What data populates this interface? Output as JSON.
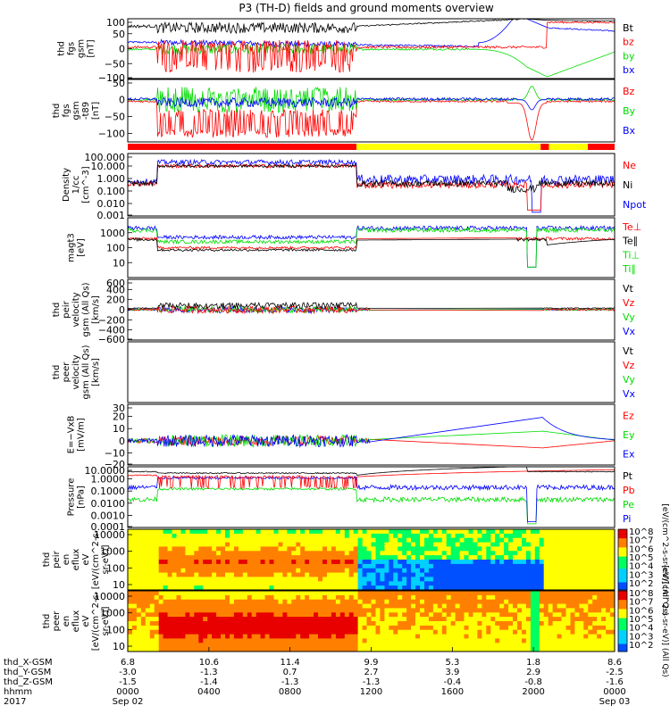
{
  "title": "P3 (TH-D) fields and ground moments overview",
  "colors": {
    "black": "#000000",
    "red": "#ff0000",
    "green": "#00dd00",
    "blue": "#0000ff",
    "yellow": "#ffff00"
  },
  "chart_data": [
    {
      "type": "line",
      "id": "fgs",
      "ylabel": [
        "thd",
        "fgs",
        "gsm",
        "[nT]"
      ],
      "ylim": [
        -100,
        100
      ],
      "ticks": [
        "100",
        "50",
        "0",
        "−50",
        "−100"
      ],
      "tick_values": [
        100,
        50,
        0,
        -50,
        -100
      ],
      "legend": [
        {
          "name": "Bt",
          "color": "#000000"
        },
        {
          "name": "bz",
          "color": "#ff0000"
        },
        {
          "name": "by",
          "color": "#00dd00"
        },
        {
          "name": "bx",
          "color": "#0000ff"
        }
      ]
    },
    {
      "type": "line",
      "id": "fgs_t89",
      "ylabel": [
        "thd",
        "fgs",
        "gsm",
        "-t89",
        "[nT]"
      ],
      "ylim": [
        -125,
        60
      ],
      "ticks": [
        "50",
        "0",
        "−50",
        "−100"
      ],
      "tick_values": [
        50,
        0,
        -50,
        -100
      ],
      "legend": [
        {
          "name": "Bz",
          "color": "#ff0000"
        },
        {
          "name": "By",
          "color": "#00dd00"
        },
        {
          "name": "Bx",
          "color": "#0000ff"
        }
      ]
    },
    {
      "type": "line",
      "id": "density",
      "ylabel": [
        "Density",
        "1/cc",
        "[cm^-3]"
      ],
      "scale": "log",
      "ylim": [
        0.001,
        100
      ],
      "ticks": [
        "100.000",
        "10.000",
        "1.000",
        "0.100",
        "0.010",
        "0.001"
      ],
      "legend": [
        {
          "name": "Ne",
          "color": "#ff0000"
        },
        {
          "name": "Ni",
          "color": "#000000"
        },
        {
          "name": "Npot",
          "color": "#0000ff"
        }
      ]
    },
    {
      "type": "line",
      "id": "temperature",
      "ylabel": [
        "magt3",
        "[eV]"
      ],
      "scale": "log",
      "ylim": [
        1,
        10000
      ],
      "ticks": [
        "1000",
        "100",
        "10"
      ],
      "legend": [
        {
          "name": "Te⊥",
          "color": "#ff0000"
        },
        {
          "name": "Te∥",
          "color": "#000000"
        },
        {
          "name": "Ti⊥",
          "color": "#00dd00"
        },
        {
          "name": "Ti∥",
          "color": "#00dd00"
        }
      ]
    },
    {
      "type": "line",
      "id": "peir_velocity",
      "ylabel": [
        "thd",
        "peir",
        "velocity",
        "gsm (All Qs)",
        "[km/s]"
      ],
      "ylim": [
        -600,
        600
      ],
      "ticks": [
        "600",
        "400",
        "200",
        "0",
        "−200",
        "−400",
        "−600"
      ],
      "tick_values": [
        600,
        400,
        200,
        0,
        -200,
        -400,
        -600
      ],
      "legend": [
        {
          "name": "Vt",
          "color": "#000000"
        },
        {
          "name": "Vz",
          "color": "#ff0000"
        },
        {
          "name": "Vy",
          "color": "#00dd00"
        },
        {
          "name": "Vx",
          "color": "#0000ff"
        }
      ]
    },
    {
      "type": "line",
      "id": "peer_velocity",
      "ylabel": [
        "thd",
        "peer",
        "velocity",
        "gsm (All Qs)",
        "[km/s]"
      ],
      "ylim": [
        -600,
        600
      ],
      "ticks": [],
      "legend": [
        {
          "name": "Vt",
          "color": "#000000"
        },
        {
          "name": "Vz",
          "color": "#ff0000"
        },
        {
          "name": "Vy",
          "color": "#00dd00"
        },
        {
          "name": "Vx",
          "color": "#0000ff"
        }
      ]
    },
    {
      "type": "line",
      "id": "efield",
      "ylabel": [
        "E=−VxB",
        "[mV/m]"
      ],
      "ylim": [
        -20,
        30
      ],
      "ticks": [
        "30",
        "20",
        "10",
        "0",
        "−10",
        "−20"
      ],
      "tick_values": [
        30,
        20,
        10,
        0,
        -10,
        -20
      ],
      "legend": [
        {
          "name": "Ez",
          "color": "#ff0000"
        },
        {
          "name": "Ey",
          "color": "#00dd00"
        },
        {
          "name": "Ex",
          "color": "#0000ff"
        }
      ]
    },
    {
      "type": "line",
      "id": "pressure",
      "ylabel": [
        "Pressure",
        "[nPa]"
      ],
      "scale": "log",
      "ylim": [
        0.0001,
        10
      ],
      "ticks": [
        "10.0000",
        "1.0000",
        "0.1000",
        "0.0100",
        "0.0010",
        "0.0001"
      ],
      "legend": [
        {
          "name": "Pt",
          "color": "#000000"
        },
        {
          "name": "Pb",
          "color": "#ff0000"
        },
        {
          "name": "Pe",
          "color": "#00dd00"
        },
        {
          "name": "Pi",
          "color": "#0000ff"
        }
      ]
    },
    {
      "type": "heatmap",
      "id": "peir_spec",
      "ylabel": [
        "thd",
        "peir",
        "en",
        "eflux",
        "eV",
        "[eV/(cm^2-s-",
        "sr-eV)]"
      ],
      "ticks": [
        "10000",
        "1000",
        "100",
        "10"
      ],
      "colorbar": {
        "label": "[eV/(cm^2-s-sr-eV)] (All Qs)",
        "ticks": [
          "10^8",
          "10^7",
          "10^6",
          "10^5",
          "10^4",
          "10^3",
          "10^2"
        ]
      }
    },
    {
      "type": "heatmap",
      "id": "peer_spec",
      "ylabel": [
        "thd",
        "peer",
        "en",
        "eflux",
        "eV",
        "[eV/(cm^2-s-",
        "sr-eV)]"
      ],
      "ticks": [
        "10000",
        "1000",
        "100",
        "10"
      ],
      "colorbar": {
        "label": "[eV/(cm^2-s-sr-eV)] (All Qs)",
        "ticks": [
          "10^8",
          "10^7",
          "10^6",
          "10^5",
          "10^4",
          "10^3",
          "10^2"
        ]
      }
    }
  ],
  "region_bar": [
    {
      "from": 0.0,
      "to": 0.47,
      "color": "#ff0000"
    },
    {
      "from": 0.47,
      "to": 0.848,
      "color": "#ffff00"
    },
    {
      "from": 0.848,
      "to": 0.865,
      "color": "#ff0000"
    },
    {
      "from": 0.865,
      "to": 0.945,
      "color": "#ffff00"
    },
    {
      "from": 0.945,
      "to": 1.0,
      "color": "#ff0000"
    }
  ],
  "x_axis": {
    "row_labels": [
      "thd_X-GSM",
      "thd_Y-GSM",
      "thd_Z-GSM",
      "hhmm",
      "2017"
    ],
    "ticks": [
      {
        "frac": 0.0,
        "vals": [
          "6.8",
          "-3.0",
          "-1.5",
          "0000",
          "Sep 02"
        ]
      },
      {
        "frac": 0.1667,
        "vals": [
          "10.6",
          "-1.3",
          "-1.4",
          "0400",
          ""
        ]
      },
      {
        "frac": 0.3333,
        "vals": [
          "11.4",
          "0.7",
          "-1.3",
          "0800",
          ""
        ]
      },
      {
        "frac": 0.5,
        "vals": [
          "9.9",
          "2.7",
          "-1.3",
          "1200",
          ""
        ]
      },
      {
        "frac": 0.6667,
        "vals": [
          "5.3",
          "3.9",
          "-0.4",
          "1600",
          ""
        ]
      },
      {
        "frac": 0.8333,
        "vals": [
          "1.8",
          "2.9",
          "-0.8",
          "2000",
          ""
        ]
      },
      {
        "frac": 1.0,
        "vals": [
          "8.6",
          "-2.5",
          "-1.6",
          "0000",
          "Sep 03"
        ]
      }
    ]
  }
}
